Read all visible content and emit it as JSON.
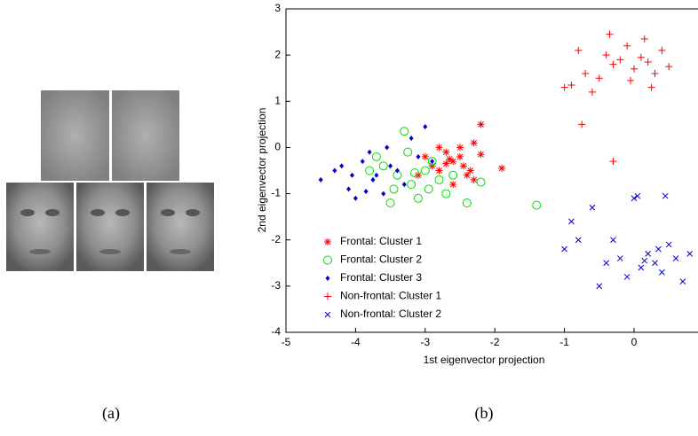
{
  "chart_data": {
    "type": "scatter",
    "xlabel": "1st eigenvector projection",
    "ylabel": "2nd eigenvector projection",
    "xlim": [
      -5,
      1
    ],
    "ylim": [
      -4,
      3
    ],
    "xticks": [
      -5,
      -4,
      -3,
      -2,
      -1,
      0
    ],
    "yticks": [
      -4,
      -3,
      -2,
      -1,
      0,
      1,
      2,
      3
    ],
    "legend": "lower left",
    "series": [
      {
        "name": "Frontal: Cluster 1",
        "color": "#ff0000",
        "marker": "asterisk",
        "x": [
          -2.2,
          -2.3,
          -2.5,
          -2.6,
          -2.7,
          -2.8,
          -2.9,
          -3.0,
          -2.4,
          -2.5,
          -2.6,
          -2.7,
          -1.9,
          -2.2,
          -2.3,
          -2.8,
          -3.1,
          -2.45,
          -2.65,
          -2.35
        ],
        "y": [
          0.5,
          0.1,
          -0.2,
          -0.3,
          -0.1,
          -0.5,
          -0.4,
          -0.2,
          -0.6,
          0.0,
          -0.8,
          -0.35,
          -0.45,
          -0.15,
          -0.7,
          0.0,
          -0.6,
          -0.4,
          -0.25,
          -0.5
        ]
      },
      {
        "name": "Frontal: Cluster 2",
        "color": "#00dd00",
        "marker": "circle",
        "x": [
          -3.6,
          -3.4,
          -3.2,
          -3.0,
          -2.8,
          -3.3,
          -3.1,
          -2.9,
          -3.5,
          -3.7,
          -2.6,
          -2.4,
          -2.2,
          -3.45,
          -3.25,
          -2.7,
          -1.4,
          -3.8,
          -3.15,
          -2.95
        ],
        "y": [
          -0.4,
          -0.6,
          -0.8,
          -0.5,
          -0.7,
          0.35,
          -1.1,
          -0.3,
          -1.2,
          -0.2,
          -0.6,
          -1.2,
          -0.75,
          -0.9,
          -0.1,
          -1.0,
          -1.25,
          -0.5,
          -0.55,
          -0.9
        ]
      },
      {
        "name": "Frontal: Cluster 3",
        "color": "#0000cc",
        "marker": "diamond",
        "x": [
          -4.5,
          -4.3,
          -4.1,
          -3.9,
          -3.7,
          -3.5,
          -3.3,
          -3.1,
          -4.0,
          -3.8,
          -3.6,
          -3.4,
          -3.2,
          -3.0,
          -4.2,
          -3.75,
          -3.55,
          -2.9,
          -3.85,
          -4.05
        ],
        "y": [
          -0.7,
          -0.5,
          -0.9,
          -0.3,
          -0.6,
          -0.4,
          -0.8,
          -0.2,
          -1.1,
          -0.1,
          -1.0,
          -0.5,
          0.2,
          0.45,
          -0.4,
          -0.7,
          0.0,
          -0.3,
          -0.95,
          -0.6
        ]
      },
      {
        "name": "Non-frontal: Cluster 1",
        "color": "#ff0000",
        "marker": "plus",
        "x": [
          -1.0,
          -0.9,
          -0.8,
          -0.7,
          -0.5,
          -0.4,
          -0.3,
          -0.2,
          -0.1,
          0.0,
          0.1,
          0.2,
          0.3,
          0.4,
          -0.6,
          -0.3,
          -0.75,
          0.5,
          0.15,
          -0.05,
          -0.35,
          0.25
        ],
        "y": [
          1.3,
          1.35,
          2.1,
          1.6,
          1.5,
          2.0,
          1.8,
          1.9,
          2.2,
          1.7,
          1.95,
          1.85,
          1.6,
          2.1,
          1.2,
          -0.3,
          0.5,
          1.75,
          2.35,
          1.45,
          2.45,
          1.3
        ]
      },
      {
        "name": "Non-frontal: Cluster 2",
        "color": "#0000cc",
        "marker": "x",
        "x": [
          -1.0,
          -0.9,
          -0.8,
          -0.6,
          -0.4,
          -0.2,
          0.0,
          0.1,
          0.2,
          0.3,
          0.4,
          0.5,
          0.6,
          0.7,
          0.8,
          -0.3,
          0.05,
          0.35,
          -0.1,
          0.15,
          0.45,
          -0.5
        ],
        "y": [
          -2.2,
          -1.6,
          -2.0,
          -1.3,
          -2.5,
          -2.4,
          -1.1,
          -2.6,
          -2.3,
          -2.5,
          -2.7,
          -2.1,
          -2.4,
          -2.9,
          -2.3,
          -2.0,
          -1.05,
          -2.2,
          -2.8,
          -2.45,
          -1.05,
          -3.0
        ]
      }
    ]
  },
  "captions": {
    "a": "(a)",
    "b": "(b)"
  }
}
